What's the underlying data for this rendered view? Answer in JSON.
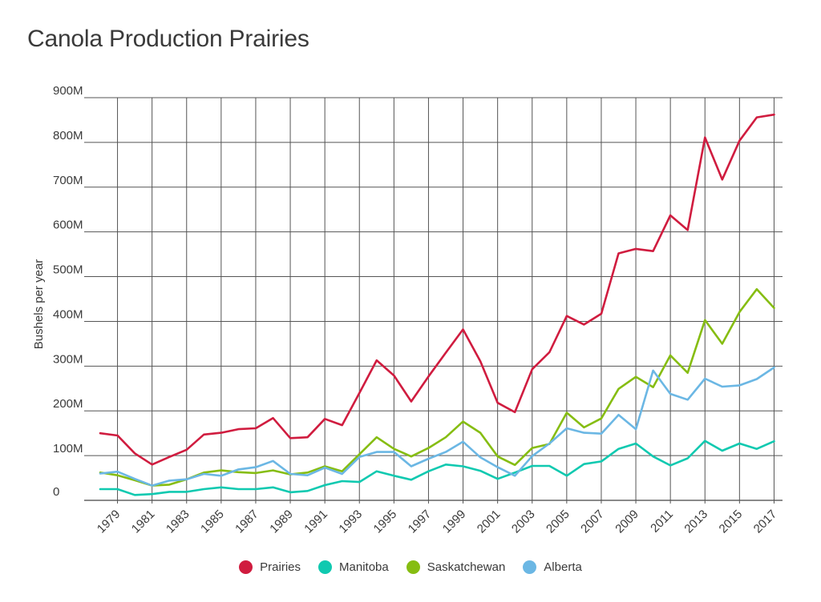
{
  "chart_data": {
    "type": "line",
    "title": "Canola Production Prairies",
    "xlabel": "",
    "ylabel": "Bushels per year",
    "ylim": [
      0,
      900000000
    ],
    "yticks": [
      {
        "value": 0,
        "label": "0"
      },
      {
        "value": 100000000,
        "label": "100M"
      },
      {
        "value": 200000000,
        "label": "200M"
      },
      {
        "value": 300000000,
        "label": "300M"
      },
      {
        "value": 400000000,
        "label": "400M"
      },
      {
        "value": 500000000,
        "label": "500M"
      },
      {
        "value": 600000000,
        "label": "600M"
      },
      {
        "value": 700000000,
        "label": "700M"
      },
      {
        "value": 800000000,
        "label": "800M"
      },
      {
        "value": 900000000,
        "label": "900M"
      }
    ],
    "x": [
      1978,
      1979,
      1980,
      1981,
      1982,
      1983,
      1984,
      1985,
      1986,
      1987,
      1988,
      1989,
      1990,
      1991,
      1992,
      1993,
      1994,
      1995,
      1996,
      1997,
      1998,
      1999,
      2000,
      2001,
      2002,
      2003,
      2004,
      2005,
      2006,
      2007,
      2008,
      2009,
      2010,
      2011,
      2012,
      2013,
      2014,
      2015,
      2016,
      2017
    ],
    "xticks": [
      "1979",
      "1981",
      "1983",
      "1985",
      "1987",
      "1989",
      "1991",
      "1993",
      "1995",
      "1997",
      "1999",
      "2001",
      "2003",
      "2005",
      "2007",
      "2009",
      "2011",
      "2013",
      "2015",
      "2017"
    ],
    "grid": true,
    "legend_position": "bottom-center",
    "series": [
      {
        "name": "Prairies",
        "color": "#d01c3f",
        "values": [
          150,
          145,
          105,
          80,
          97,
          113,
          147,
          151,
          159,
          161,
          184,
          139,
          141,
          182,
          168,
          240,
          313,
          279,
          221,
          277,
          330,
          382,
          311,
          218,
          197,
          293,
          331,
          412,
          393,
          417,
          552,
          562,
          557,
          637,
          604,
          811,
          717,
          804,
          856,
          862
        ]
      },
      {
        "name": "Manitoba",
        "color": "#10c9b0",
        "values": [
          25,
          25,
          12,
          14,
          19,
          19,
          25,
          29,
          25,
          25,
          29,
          18,
          21,
          34,
          43,
          41,
          65,
          55,
          46,
          65,
          80,
          76,
          66,
          48,
          62,
          77,
          77,
          55,
          81,
          87,
          115,
          127,
          98,
          78,
          94,
          133,
          111,
          127,
          115,
          132
        ]
      },
      {
        "name": "Saskatchewan",
        "color": "#86bd12",
        "values": [
          62,
          56,
          45,
          33,
          35,
          47,
          62,
          67,
          63,
          61,
          67,
          58,
          62,
          76,
          65,
          103,
          141,
          115,
          98,
          117,
          141,
          176,
          151,
          98,
          79,
          117,
          126,
          196,
          163,
          183,
          249,
          276,
          253,
          324,
          285,
          403,
          350,
          421,
          472,
          430
        ]
      },
      {
        "name": "Alberta",
        "color": "#6bb7e4",
        "values": [
          60,
          64,
          48,
          33,
          44,
          47,
          59,
          55,
          69,
          74,
          88,
          59,
          56,
          73,
          59,
          97,
          108,
          108,
          76,
          93,
          108,
          131,
          96,
          74,
          55,
          99,
          127,
          161,
          151,
          149,
          191,
          159,
          290,
          238,
          225,
          272,
          254,
          257,
          271,
          297
        ]
      }
    ],
    "value_unit_multiplier": 1000000
  }
}
